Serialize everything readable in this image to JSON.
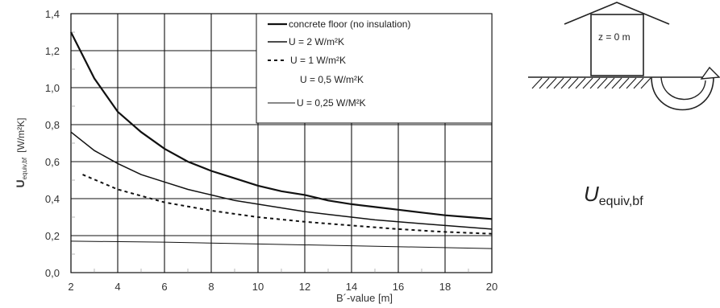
{
  "chart_data": {
    "type": "line",
    "xlabel": "B´-value  [m]",
    "ylabel_main": "U",
    "ylabel_sub": "equiv,bf",
    "ylabel_unit": "[W/m²K]",
    "xlim": [
      2,
      20
    ],
    "ylim": [
      0.0,
      1.4
    ],
    "x_ticks": [
      "2",
      "4",
      "6",
      "8",
      "10",
      "12",
      "14",
      "16",
      "18",
      "20"
    ],
    "y_ticks": [
      "0,0",
      "0,2",
      "0,4",
      "0,6",
      "0,8",
      "1,0",
      "1,2",
      "1,4"
    ],
    "grid": true,
    "legend_position": "top-right",
    "series": [
      {
        "name": "concrete floor (no insulation)",
        "style": "solid-heavy",
        "x": [
          2,
          3,
          4,
          5,
          6,
          7,
          8,
          9,
          10,
          11,
          12,
          13,
          14,
          15,
          16,
          17,
          18,
          19,
          20
        ],
        "y": [
          1.3,
          1.05,
          0.87,
          0.76,
          0.67,
          0.6,
          0.55,
          0.51,
          0.47,
          0.44,
          0.42,
          0.39,
          0.37,
          0.355,
          0.34,
          0.325,
          0.31,
          0.3,
          0.29
        ]
      },
      {
        "name": "U = 2 W/m²K",
        "style": "solid",
        "x": [
          2,
          3,
          4,
          5,
          6,
          7,
          8,
          9,
          10,
          11,
          12,
          13,
          14,
          15,
          16,
          17,
          18,
          19,
          20
        ],
        "y": [
          0.76,
          0.66,
          0.59,
          0.53,
          0.49,
          0.45,
          0.42,
          0.39,
          0.37,
          0.35,
          0.33,
          0.315,
          0.3,
          0.285,
          0.275,
          0.265,
          0.255,
          0.245,
          0.235
        ]
      },
      {
        "name": "U = 1 W/m²K",
        "style": "dashed",
        "x": [
          2.5,
          4,
          6,
          8,
          10,
          12,
          14,
          16,
          18,
          20
        ],
        "y": [
          0.53,
          0.45,
          0.38,
          0.335,
          0.3,
          0.275,
          0.255,
          0.235,
          0.22,
          0.21
        ]
      },
      {
        "name": "U = 0,5 W/m²K",
        "style": "none",
        "x": [],
        "y": []
      },
      {
        "name": "U = 0,25 W/M²K",
        "style": "solid-thin",
        "x": [
          2,
          6,
          10,
          14,
          20
        ],
        "y": [
          0.17,
          0.165,
          0.155,
          0.145,
          0.13
        ]
      }
    ]
  },
  "diagram": {
    "z_label": "z = 0 m",
    "formula_main": "U",
    "formula_sub": "equiv,bf"
  }
}
